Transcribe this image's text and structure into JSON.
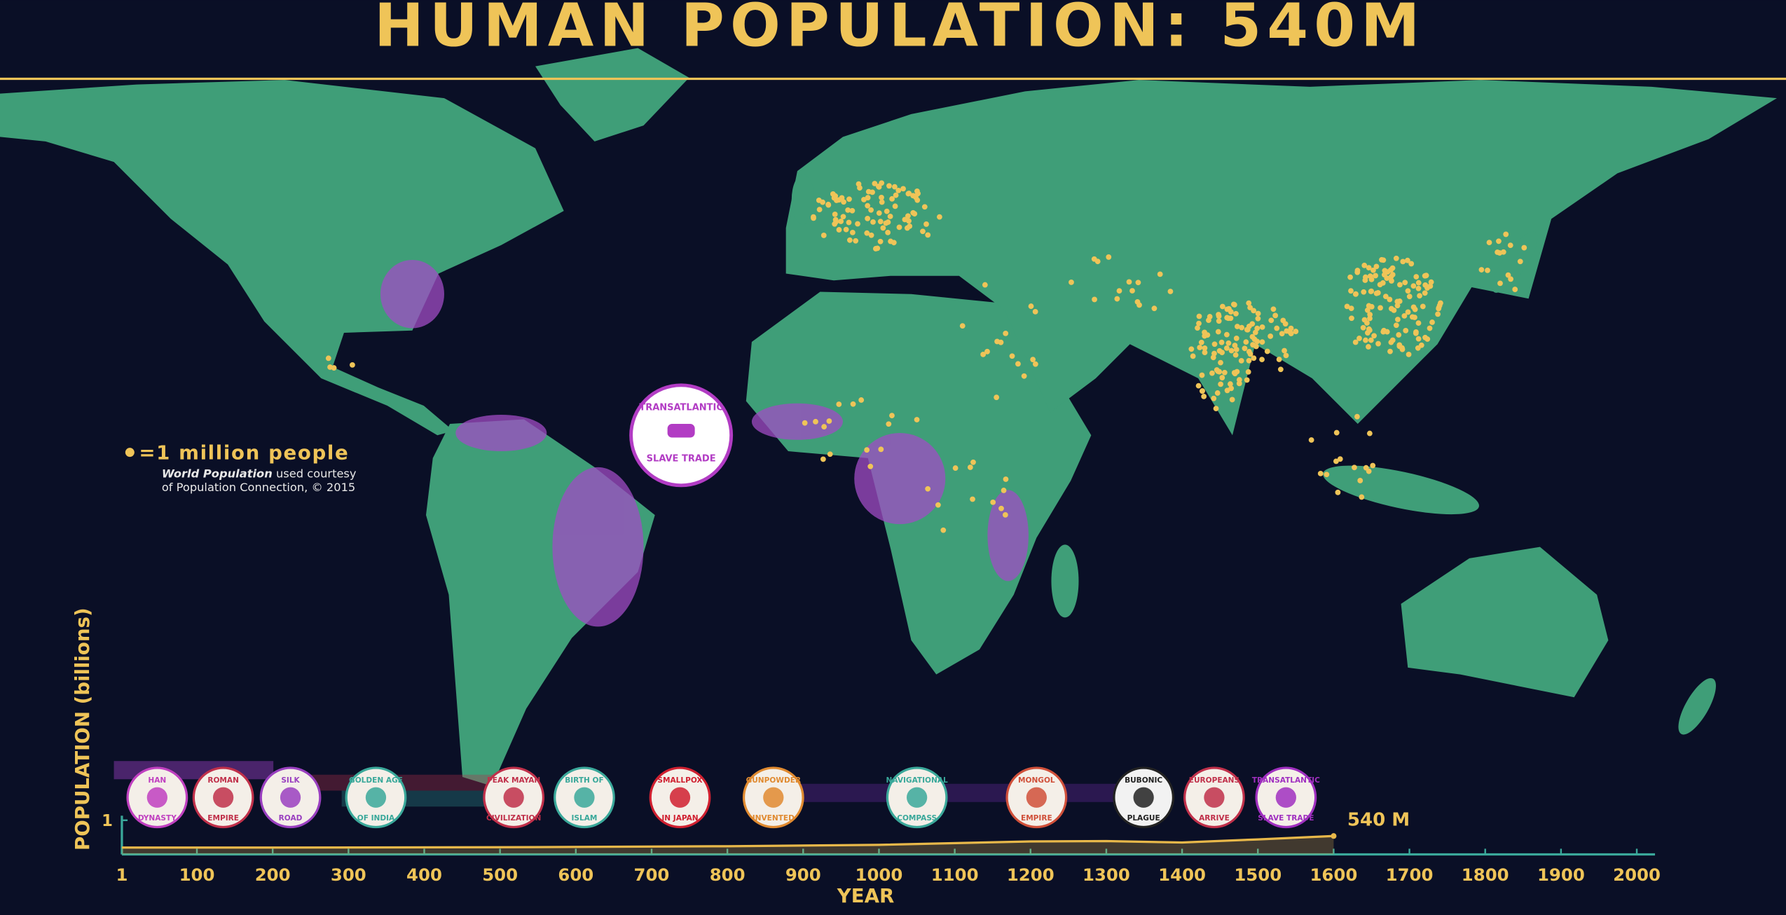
{
  "header": {
    "title": "HUMAN POPULATION: 540M"
  },
  "legend": {
    "symbol_label": "=1 million people",
    "credit_title": "World Population",
    "credit_rest": "used courtesy",
    "credit_line2": "of Population Connection, © 2015"
  },
  "callout": {
    "lines": [
      "TRANSATLANTIC",
      "SLAVE TRADE"
    ]
  },
  "events": [
    {
      "lines": [
        "HAN",
        "DYNASTY"
      ]
    },
    {
      "lines": [
        "ROMAN",
        "EMPIRE"
      ]
    },
    {
      "lines": [
        "SILK",
        "ROAD"
      ]
    },
    {
      "lines": [
        "GOLDEN AGE",
        "OF INDIA"
      ]
    },
    {
      "lines": [
        "PEAK MAYAN",
        "CIVILIZATION"
      ]
    },
    {
      "lines": [
        "BIRTH OF",
        "ISLAM"
      ]
    },
    {
      "lines": [
        "SMALLPOX",
        "IN JAPAN"
      ]
    },
    {
      "lines": [
        "GUNPOWDER",
        "INVENTED"
      ]
    },
    {
      "lines": [
        "NAVIGATIONAL",
        "COMPASS"
      ]
    },
    {
      "lines": [
        "MONGOL",
        "EMPIRE"
      ]
    },
    {
      "lines": [
        "BUBONIC",
        "PLAGUE"
      ]
    },
    {
      "lines": [
        "EUROPEANS",
        "ARRIVE"
      ]
    },
    {
      "lines": [
        "TRANSATLANTIC",
        "SLAVE TRADE"
      ]
    }
  ],
  "chart_data": {
    "type": "line",
    "xlabel": "YEAR",
    "ylabel": "POPULATION (billions)",
    "x": [
      1,
      200,
      500,
      800,
      1000,
      1200,
      1300,
      1400,
      1500,
      1600
    ],
    "values": [
      0.2,
      0.2,
      0.21,
      0.24,
      0.28,
      0.38,
      0.39,
      0.35,
      0.44,
      0.54
    ],
    "color": "#e8b84a",
    "end_label": "540 M",
    "xlim": [
      1,
      2000
    ],
    "xticks": [
      1,
      100,
      200,
      300,
      400,
      500,
      600,
      700,
      800,
      900,
      1000,
      1100,
      1200,
      1300,
      1400,
      1500,
      1600,
      1700,
      1800,
      1900,
      2000
    ],
    "ylim": [
      0,
      1
    ],
    "yticks": [
      1
    ]
  }
}
